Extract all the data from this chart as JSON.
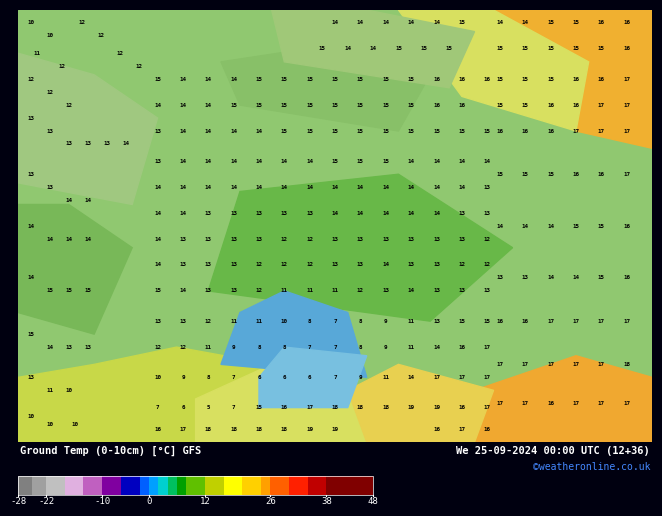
{
  "title_left": "Ground Temp (0-10cm) [°C] GFS",
  "title_right": "We 25-09-2024 00:00 UTC (12+36)",
  "credit": "©weatheronline.co.uk",
  "colorbar_ticks": [
    -28,
    -22,
    -10,
    0,
    12,
    26,
    38,
    48
  ],
  "colorbar_colors": [
    "#808080",
    "#a0a0a0",
    "#c0c0c0",
    "#e0b0e0",
    "#c060c0",
    "#8000a0",
    "#0000c0",
    "#0060ff",
    "#00a0ff",
    "#00d0d0",
    "#00c060",
    "#00a000",
    "#60c000",
    "#c0d000",
    "#ffff00",
    "#ffd000",
    "#ffa000",
    "#ff6000",
    "#ff2000",
    "#c00000",
    "#800000"
  ],
  "colorbar_bounds": [
    -28,
    -25,
    -22,
    -18,
    -14,
    -10,
    -6,
    -2,
    0,
    2,
    4,
    6,
    8,
    12,
    16,
    20,
    24,
    26,
    30,
    34,
    38,
    48
  ],
  "bg_color": "#000010",
  "fig_width": 6.34,
  "fig_height": 4.9
}
